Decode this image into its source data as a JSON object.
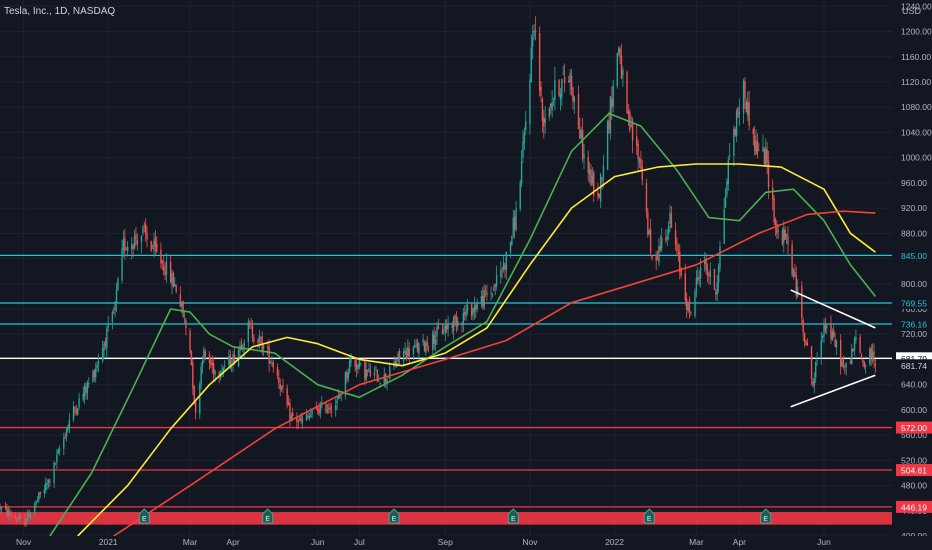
{
  "header": {
    "title": "Tesla, Inc., 1D, NASDAQ"
  },
  "chart_data": {
    "type": "candlestick",
    "currency": "USD",
    "y_axis": {
      "ylim": [
        400,
        1250
      ],
      "ticks": [
        1240,
        1200,
        1160,
        1120,
        1080,
        1040,
        1000,
        960,
        920,
        880,
        840,
        800,
        760,
        720,
        680,
        640,
        600,
        560,
        520,
        480,
        440,
        400
      ],
      "tick_labels": [
        "1240.00",
        "1200.00",
        "1160.00",
        "1120.00",
        "1080.00",
        "1040.00",
        "1000.00",
        "960.00",
        "920.00",
        "880.00",
        "840.00",
        "800.00",
        "760.00",
        "720.00",
        "680.00",
        "640.00",
        "600.00",
        "560.00",
        "520.00",
        "480.00",
        "440.00",
        "400.00"
      ]
    },
    "x_axis": {
      "xlim": [
        "2020-10-15",
        "2022-07-20"
      ],
      "ticks": [
        {
          "date": "2020-11-01",
          "label": "Nov"
        },
        {
          "date": "2021-01-01",
          "label": "2021"
        },
        {
          "date": "2021-03-01",
          "label": "Mar"
        },
        {
          "date": "2021-04-01",
          "label": "Apr"
        },
        {
          "date": "2021-06-01",
          "label": "Jun"
        },
        {
          "date": "2021-07-01",
          "label": "Jul"
        },
        {
          "date": "2021-09-01",
          "label": "Sep"
        },
        {
          "date": "2021-11-01",
          "label": "Nov"
        },
        {
          "date": "2022-01-01",
          "label": "2022"
        },
        {
          "date": "2022-03-01",
          "label": "Mar"
        },
        {
          "date": "2022-04-01",
          "label": "Apr"
        },
        {
          "date": "2022-06-01",
          "label": "Jun"
        }
      ]
    },
    "price_path": [
      [
        "2020-10-15",
        445
      ],
      [
        "2020-11-01",
        420
      ],
      [
        "2020-11-20",
        490
      ],
      [
        "2020-12-05",
        590
      ],
      [
        "2020-12-20",
        650
      ],
      [
        "2021-01-05",
        750
      ],
      [
        "2021-01-12",
        860
      ],
      [
        "2021-01-26",
        880
      ],
      [
        "2021-02-01",
        860
      ],
      [
        "2021-02-10",
        830
      ],
      [
        "2021-02-20",
        790
      ],
      [
        "2021-03-01",
        700
      ],
      [
        "2021-03-05",
        590
      ],
      [
        "2021-03-10",
        690
      ],
      [
        "2021-03-20",
        660
      ],
      [
        "2021-04-01",
        680
      ],
      [
        "2021-04-12",
        730
      ],
      [
        "2021-04-20",
        710
      ],
      [
        "2021-05-01",
        670
      ],
      [
        "2021-05-12",
        590
      ],
      [
        "2021-05-20",
        580
      ],
      [
        "2021-06-01",
        600
      ],
      [
        "2021-06-15",
        610
      ],
      [
        "2021-06-25",
        680
      ],
      [
        "2021-07-05",
        660
      ],
      [
        "2021-07-20",
        650
      ],
      [
        "2021-08-01",
        690
      ],
      [
        "2021-08-15",
        700
      ],
      [
        "2021-09-01",
        730
      ],
      [
        "2021-09-20",
        760
      ],
      [
        "2021-10-05",
        790
      ],
      [
        "2021-10-15",
        840
      ],
      [
        "2021-10-22",
        910
      ],
      [
        "2021-10-28",
        1030
      ],
      [
        "2021-11-04",
        1220
      ],
      [
        "2021-11-10",
        1060
      ],
      [
        "2021-11-20",
        1110
      ],
      [
        "2021-11-30",
        1130
      ],
      [
        "2021-12-10",
        1000
      ],
      [
        "2021-12-20",
        930
      ],
      [
        "2022-01-04",
        1180
      ],
      [
        "2022-01-10",
        1060
      ],
      [
        "2022-01-20",
        990
      ],
      [
        "2022-01-28",
        830
      ],
      [
        "2022-02-10",
        900
      ],
      [
        "2022-02-24",
        750
      ],
      [
        "2022-03-05",
        840
      ],
      [
        "2022-03-15",
        790
      ],
      [
        "2022-03-25",
        1010
      ],
      [
        "2022-04-04",
        1110
      ],
      [
        "2022-04-12",
        1020
      ],
      [
        "2022-04-20",
        1000
      ],
      [
        "2022-04-28",
        880
      ],
      [
        "2022-05-05",
        870
      ],
      [
        "2022-05-15",
        760
      ],
      [
        "2022-05-24",
        640
      ],
      [
        "2022-06-01",
        740
      ],
      [
        "2022-06-10",
        700
      ],
      [
        "2022-06-16",
        660
      ],
      [
        "2022-06-24",
        710
      ],
      [
        "2022-06-30",
        670
      ],
      [
        "2022-07-05",
        690
      ],
      [
        "2022-07-08",
        680
      ]
    ],
    "moving_averages": [
      {
        "color": "#4caf50",
        "points": [
          [
            "2020-11-20",
            400
          ],
          [
            "2020-12-20",
            500
          ],
          [
            "2021-01-20",
            640
          ],
          [
            "2021-02-15",
            760
          ],
          [
            "2021-03-01",
            755
          ],
          [
            "2021-03-15",
            720
          ],
          [
            "2021-04-01",
            700
          ],
          [
            "2021-05-01",
            690
          ],
          [
            "2021-06-01",
            640
          ],
          [
            "2021-07-01",
            620
          ],
          [
            "2021-08-01",
            655
          ],
          [
            "2021-09-01",
            700
          ],
          [
            "2021-10-01",
            740
          ],
          [
            "2021-11-01",
            870
          ],
          [
            "2021-12-01",
            1010
          ],
          [
            "2021-12-28",
            1070
          ],
          [
            "2022-01-20",
            1050
          ],
          [
            "2022-02-15",
            980
          ],
          [
            "2022-03-10",
            905
          ],
          [
            "2022-04-01",
            900
          ],
          [
            "2022-04-20",
            945
          ],
          [
            "2022-05-10",
            950
          ],
          [
            "2022-06-01",
            900
          ],
          [
            "2022-06-20",
            830
          ],
          [
            "2022-07-08",
            780
          ]
        ]
      },
      {
        "color": "#ffeb3b",
        "points": [
          [
            "2020-12-10",
            400
          ],
          [
            "2021-01-15",
            480
          ],
          [
            "2021-02-15",
            570
          ],
          [
            "2021-03-15",
            640
          ],
          [
            "2021-04-15",
            700
          ],
          [
            "2021-05-10",
            715
          ],
          [
            "2021-06-01",
            705
          ],
          [
            "2021-07-01",
            680
          ],
          [
            "2021-08-01",
            670
          ],
          [
            "2021-09-01",
            690
          ],
          [
            "2021-10-01",
            730
          ],
          [
            "2021-11-01",
            830
          ],
          [
            "2021-12-01",
            920
          ],
          [
            "2022-01-01",
            970
          ],
          [
            "2022-02-01",
            985
          ],
          [
            "2022-03-01",
            990
          ],
          [
            "2022-04-01",
            990
          ],
          [
            "2022-05-01",
            985
          ],
          [
            "2022-06-01",
            950
          ],
          [
            "2022-06-20",
            880
          ],
          [
            "2022-07-08",
            850
          ]
        ]
      },
      {
        "color": "#f44336",
        "points": [
          [
            "2021-01-05",
            400
          ],
          [
            "2021-03-01",
            480
          ],
          [
            "2021-05-01",
            570
          ],
          [
            "2021-07-01",
            640
          ],
          [
            "2021-09-01",
            680
          ],
          [
            "2021-10-15",
            710
          ],
          [
            "2021-12-01",
            770
          ],
          [
            "2022-01-15",
            800
          ],
          [
            "2022-03-01",
            830
          ],
          [
            "2022-04-15",
            880
          ],
          [
            "2022-05-20",
            910
          ],
          [
            "2022-06-15",
            915
          ],
          [
            "2022-07-08",
            912
          ]
        ]
      }
    ],
    "horizontal_levels": [
      {
        "value": 845.0,
        "label": "845.00",
        "color": "#26c6da"
      },
      {
        "value": 769.55,
        "label": "769.55",
        "color": "#26c6da"
      },
      {
        "value": 736.16,
        "label": "736.16",
        "color": "#26c6da"
      },
      {
        "value": 681.79,
        "label": "681.79",
        "color": "#ffffff"
      },
      {
        "value": 572.0,
        "label": "572.00",
        "color": "#f23645"
      },
      {
        "value": 504.61,
        "label": "504.61",
        "color": "#f23645"
      },
      {
        "value": 446.19,
        "label": "446.19",
        "color": "#f23645"
      }
    ],
    "last_price": {
      "value": 681.74,
      "label": "681.74"
    },
    "triangle": {
      "upper": [
        [
          "2022-05-08",
          790
        ],
        [
          "2022-07-08",
          730
        ]
      ],
      "lower": [
        [
          "2022-05-08",
          605
        ],
        [
          "2022-07-08",
          655
        ]
      ]
    },
    "zone": {
      "from": 418,
      "to": 438,
      "color": "#f23645"
    },
    "events": [
      {
        "date": "2021-01-27",
        "label": "E"
      },
      {
        "date": "2021-04-26",
        "label": "E"
      },
      {
        "date": "2021-07-26",
        "label": "E"
      },
      {
        "date": "2021-10-20",
        "label": "E"
      },
      {
        "date": "2022-01-26",
        "label": "E"
      },
      {
        "date": "2022-04-20",
        "label": "E"
      }
    ]
  }
}
